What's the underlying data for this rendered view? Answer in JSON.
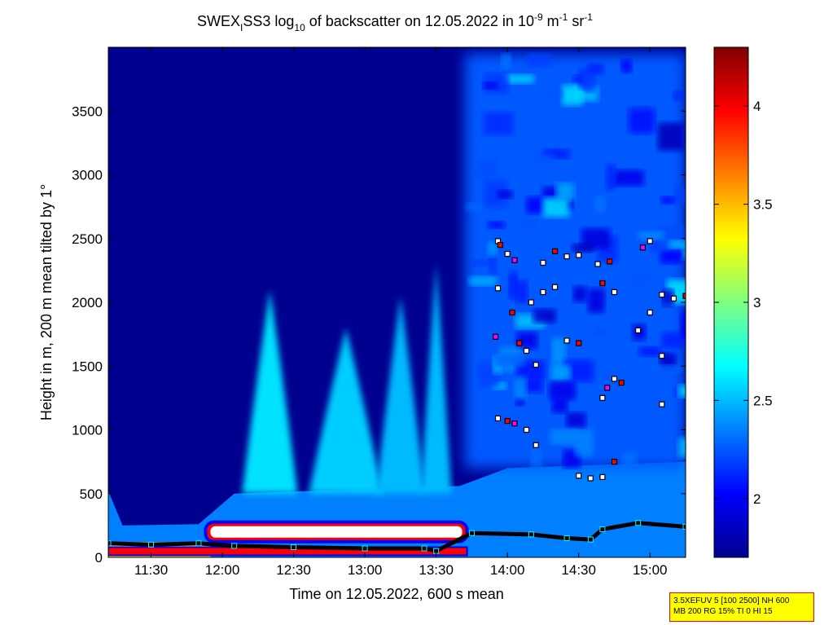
{
  "chart_data": {
    "type": "heatmap",
    "title": {
      "prefix": "SWEX",
      "prefix_sub": "I",
      "middle": "SS3 log",
      "middle_sub": "10",
      "suffix": " of backscatter on 12.05.2022 in 10",
      "exp1": "-9",
      "unit1": " m",
      "exp2": "-1",
      "unit2": " sr",
      "exp3": "-1"
    },
    "xlabel": "Time on 12.05.2022, 600 s mean",
    "ylabel": "Height in m, 200 m mean tilted by 1°",
    "x_unit": "hours (12.05.2022)",
    "xlim": [
      "11:12",
      "15:15"
    ],
    "ylim": [
      0,
      4000
    ],
    "x_ticks": [
      "11:30",
      "12:00",
      "12:30",
      "13:00",
      "13:30",
      "14:00",
      "14:30",
      "15:00"
    ],
    "y_ticks": [
      "0",
      "500",
      "1000",
      "1500",
      "2000",
      "2500",
      "3000",
      "3500"
    ],
    "colorbar": {
      "range": [
        1.7,
        4.3
      ],
      "ticks": [
        "2",
        "2.5",
        "3",
        "3.5",
        "4"
      ],
      "colormap": "jet"
    },
    "background_value": 1.8,
    "aerosol_plumes": [
      {
        "center_time": "12:20",
        "top_height": 2100,
        "half_width_minutes": 9,
        "peak_value": 2.6
      },
      {
        "center_time": "12:52",
        "top_height": 1800,
        "half_width_minutes": 12,
        "peak_value": 2.55
      },
      {
        "center_time": "13:15",
        "top_height": 2050,
        "half_width_minutes": 8,
        "peak_value": 2.5
      },
      {
        "center_time": "13:30",
        "top_height": 2300,
        "half_width_minutes": 5,
        "peak_value": 2.5
      }
    ],
    "mixed_layer_top": [
      {
        "time": "11:12",
        "height": 520
      },
      {
        "time": "11:18",
        "height": 250
      },
      {
        "time": "11:50",
        "height": 260
      },
      {
        "time": "12:05",
        "height": 500
      },
      {
        "time": "13:40",
        "height": 560
      },
      {
        "time": "14:00",
        "height": 700
      },
      {
        "time": "15:15",
        "height": 750
      }
    ],
    "boundary_layer_markers": [
      {
        "time": "11:12",
        "height": 110
      },
      {
        "time": "11:30",
        "height": 100
      },
      {
        "time": "11:50",
        "height": 110
      },
      {
        "time": "12:05",
        "height": 90
      },
      {
        "time": "12:30",
        "height": 80
      },
      {
        "time": "13:00",
        "height": 70
      },
      {
        "time": "13:25",
        "height": 70
      },
      {
        "time": "13:30",
        "height": 50
      },
      {
        "time": "13:45",
        "height": 190
      },
      {
        "time": "14:10",
        "height": 180
      },
      {
        "time": "14:25",
        "height": 150
      },
      {
        "time": "14:35",
        "height": 140
      },
      {
        "time": "14:40",
        "height": 220
      },
      {
        "time": "14:55",
        "height": 270
      },
      {
        "time": "15:15",
        "height": 240
      }
    ],
    "elevated_layer": {
      "start": "11:55",
      "end": "13:43",
      "height": 200
    },
    "cloud_base_markers": [
      {
        "time": "13:56",
        "height": 2480
      },
      {
        "time": "13:57",
        "height": 2450
      },
      {
        "time": "14:00",
        "height": 2380
      },
      {
        "time": "14:03",
        "height": 2330
      },
      {
        "time": "14:15",
        "height": 2310
      },
      {
        "time": "14:20",
        "height": 2400
      },
      {
        "time": "14:25",
        "height": 2360
      },
      {
        "time": "14:30",
        "height": 2370
      },
      {
        "time": "14:38",
        "height": 2300
      },
      {
        "time": "14:43",
        "height": 2320
      },
      {
        "time": "14:57",
        "height": 2430
      },
      {
        "time": "15:00",
        "height": 2480
      },
      {
        "time": "13:56",
        "height": 2110
      },
      {
        "time": "14:02",
        "height": 1920
      },
      {
        "time": "14:10",
        "height": 2000
      },
      {
        "time": "14:15",
        "height": 2080
      },
      {
        "time": "14:20",
        "height": 2120
      },
      {
        "time": "14:40",
        "height": 2150
      },
      {
        "time": "14:45",
        "height": 2080
      },
      {
        "time": "15:05",
        "height": 2060
      },
      {
        "time": "15:10",
        "height": 2030
      },
      {
        "time": "15:15",
        "height": 2050
      },
      {
        "time": "15:00",
        "height": 1920
      },
      {
        "time": "14:55",
        "height": 1780
      },
      {
        "time": "13:55",
        "height": 1730
      },
      {
        "time": "14:05",
        "height": 1680
      },
      {
        "time": "14:08",
        "height": 1620
      },
      {
        "time": "14:12",
        "height": 1510
      },
      {
        "time": "14:25",
        "height": 1700
      },
      {
        "time": "14:30",
        "height": 1680
      },
      {
        "time": "14:45",
        "height": 1400
      },
      {
        "time": "14:42",
        "height": 1330
      },
      {
        "time": "14:40",
        "height": 1250
      },
      {
        "time": "14:48",
        "height": 1370
      },
      {
        "time": "15:05",
        "height": 1580
      },
      {
        "time": "15:05",
        "height": 1200
      },
      {
        "time": "13:56",
        "height": 1090
      },
      {
        "time": "14:00",
        "height": 1070
      },
      {
        "time": "14:03",
        "height": 1050
      },
      {
        "time": "14:08",
        "height": 1000
      },
      {
        "time": "14:12",
        "height": 880
      },
      {
        "time": "14:45",
        "height": 750
      },
      {
        "time": "14:30",
        "height": 640
      },
      {
        "time": "14:35",
        "height": 620
      },
      {
        "time": "14:40",
        "height": 630
      }
    ]
  },
  "info_box": {
    "line1": "3.5XEFUV 5 [100 2500] NH 600",
    "line2": "MB 200 RG 15% TI 0 HI 15"
  }
}
